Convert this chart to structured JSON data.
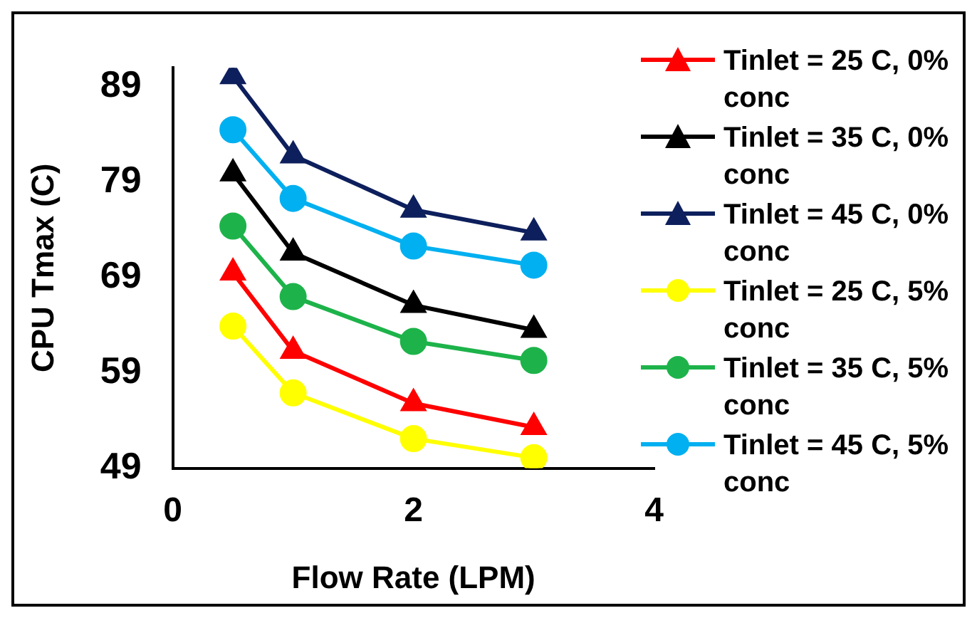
{
  "chart_data": {
    "type": "line",
    "xlabel": "Flow Rate (LPM)",
    "ylabel": "CPU Tmax (C)",
    "x": [
      0.5,
      1,
      2,
      3
    ],
    "xlim": [
      0,
      4
    ],
    "xticks": [
      0,
      2,
      4
    ],
    "ylim": [
      49,
      91
    ],
    "yticks": [
      49,
      59,
      69,
      79,
      89
    ],
    "grid": false,
    "legend": "right",
    "line_style": "solid",
    "series": [
      {
        "name": "Tinlet = 25 C, 0% conc",
        "color": "#ff0000",
        "marker": "triangle",
        "values": [
          69.5,
          61.3,
          55.8,
          53.3
        ]
      },
      {
        "name": "Tinlet = 35 C, 0% conc",
        "color": "#000000",
        "marker": "triangle",
        "values": [
          79.9,
          71.6,
          66.1,
          63.5
        ]
      },
      {
        "name": "Tinlet = 45 C, 0% conc",
        "color": "#0d1f5c",
        "marker": "triangle",
        "values": [
          90.1,
          81.8,
          76.1,
          73.7
        ]
      },
      {
        "name": "Tinlet = 25 C, 5% conc",
        "color": "#ffff00",
        "marker": "circle",
        "values": [
          63.9,
          56.9,
          52.1,
          50.1
        ]
      },
      {
        "name": "Tinlet = 35 C, 5% conc",
        "color": "#1db34a",
        "marker": "circle",
        "values": [
          74.4,
          67.0,
          62.3,
          60.3
        ]
      },
      {
        "name": "Tinlet = 45 C, 5% conc",
        "color": "#00b0f0",
        "marker": "circle",
        "values": [
          84.5,
          77.3,
          72.3,
          70.3
        ]
      }
    ]
  }
}
